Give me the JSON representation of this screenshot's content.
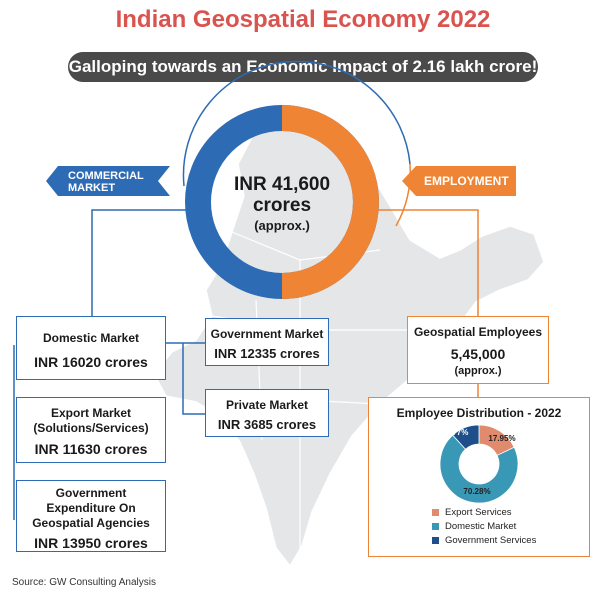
{
  "title": "Indian Geospatial Economy 2022",
  "banner": "Galloping towards an Economic Impact of 2.16 lakh crore!",
  "center": {
    "line1": "INR 41,600",
    "line2": "crores",
    "line3": "(approx.)"
  },
  "commercial_tag": {
    "line1": "COMMERCIAL",
    "line2": "MARKET"
  },
  "employment_tag": "EMPLOYMENT",
  "domestic": {
    "label": "Domestic Market",
    "value": "INR 16020 crores"
  },
  "export": {
    "label1": "Export Market",
    "label2": "(Solutions/Services)",
    "value": "INR 11630 crores"
  },
  "gov_exp": {
    "label1": "Government",
    "label2": "Expenditure On",
    "label3": "Geospatial Agencies",
    "value": "INR 13950 crores"
  },
  "gov_market": {
    "label": "Government Market",
    "value": "INR 12335 crores"
  },
  "private_market": {
    "label": "Private Market",
    "value": "INR 3685 crores"
  },
  "employees": {
    "label": "Geospatial Employees",
    "value": "5,45,000",
    "note": "(approx.)"
  },
  "source": "Source: GW Consulting Analysis",
  "chart_data": {
    "type": "pie",
    "title": "Employee Distribution - 2022",
    "categories": [
      "Export Services",
      "Domestic Market",
      "Government Services"
    ],
    "values": [
      17.95,
      70.28,
      11.77
    ],
    "labels": [
      "17.95%",
      "70.28%",
      "11.77%"
    ],
    "colors": [
      "#e08a6e",
      "#3a98b7",
      "#1f4f8a"
    ],
    "legend": "bottom"
  },
  "colors": {
    "blue": "#2d6bb5",
    "orange": "#ef8434",
    "title": "#d9534f",
    "map": "#e4e6e8"
  }
}
